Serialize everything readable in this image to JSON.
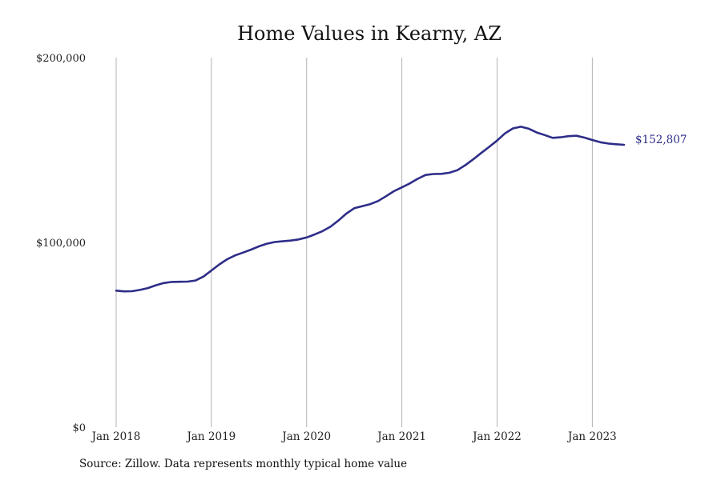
{
  "chart_data": {
    "type": "line",
    "title": "Home Values in Kearny, AZ",
    "xlabel": "",
    "ylabel": "",
    "ylim": [
      0,
      200000
    ],
    "xlim": [
      "2018-01",
      "2023-05"
    ],
    "y_ticks": [
      "$0",
      "$100,000",
      "$200,000"
    ],
    "x_ticks": [
      {
        "date": "2018-01",
        "label": "Jan 2018"
      },
      {
        "date": "2019-01",
        "label": "Jan 2019"
      },
      {
        "date": "2020-01",
        "label": "Jan 2020"
      },
      {
        "date": "2021-01",
        "label": "Jan 2021"
      },
      {
        "date": "2022-01",
        "label": "Jan 2022"
      },
      {
        "date": "2023-01",
        "label": "Jan 2023"
      }
    ],
    "grid": {
      "vertical": true,
      "horizontal": false
    },
    "line_color": "#2e2d88",
    "end_label": "$152,807",
    "series": [
      {
        "values": [
          {
            "x": "2018-01",
            "y": 73900
          },
          {
            "x": "2018-02",
            "y": 73500
          },
          {
            "x": "2018-03",
            "y": 73600
          },
          {
            "x": "2018-04",
            "y": 74300
          },
          {
            "x": "2018-05",
            "y": 75300
          },
          {
            "x": "2018-06",
            "y": 76800
          },
          {
            "x": "2018-07",
            "y": 78000
          },
          {
            "x": "2018-08",
            "y": 78600
          },
          {
            "x": "2018-09",
            "y": 78700
          },
          {
            "x": "2018-10",
            "y": 78800
          },
          {
            "x": "2018-11",
            "y": 79400
          },
          {
            "x": "2018-12",
            "y": 81500
          },
          {
            "x": "2019-01",
            "y": 84800
          },
          {
            "x": "2019-02",
            "y": 88100
          },
          {
            "x": "2019-03",
            "y": 90900
          },
          {
            "x": "2019-04",
            "y": 93000
          },
          {
            "x": "2019-05",
            "y": 94500
          },
          {
            "x": "2019-06",
            "y": 96100
          },
          {
            "x": "2019-07",
            "y": 97900
          },
          {
            "x": "2019-08",
            "y": 99300
          },
          {
            "x": "2019-09",
            "y": 100200
          },
          {
            "x": "2019-10",
            "y": 100600
          },
          {
            "x": "2019-11",
            "y": 101000
          },
          {
            "x": "2019-12",
            "y": 101600
          },
          {
            "x": "2020-01",
            "y": 102700
          },
          {
            "x": "2020-02",
            "y": 104300
          },
          {
            "x": "2020-03",
            "y": 106100
          },
          {
            "x": "2020-04",
            "y": 108500
          },
          {
            "x": "2020-05",
            "y": 111800
          },
          {
            "x": "2020-06",
            "y": 115600
          },
          {
            "x": "2020-07",
            "y": 118500
          },
          {
            "x": "2020-08",
            "y": 119600
          },
          {
            "x": "2020-09",
            "y": 120700
          },
          {
            "x": "2020-10",
            "y": 122400
          },
          {
            "x": "2020-11",
            "y": 125000
          },
          {
            "x": "2020-12",
            "y": 127700
          },
          {
            "x": "2021-01",
            "y": 129800
          },
          {
            "x": "2021-02",
            "y": 131900
          },
          {
            "x": "2021-03",
            "y": 134400
          },
          {
            "x": "2021-04",
            "y": 136500
          },
          {
            "x": "2021-05",
            "y": 137000
          },
          {
            "x": "2021-06",
            "y": 137100
          },
          {
            "x": "2021-07",
            "y": 137700
          },
          {
            "x": "2021-08",
            "y": 139100
          },
          {
            "x": "2021-09",
            "y": 141800
          },
          {
            "x": "2021-10",
            "y": 145000
          },
          {
            "x": "2021-11",
            "y": 148400
          },
          {
            "x": "2021-12",
            "y": 151700
          },
          {
            "x": "2022-01",
            "y": 155100
          },
          {
            "x": "2022-02",
            "y": 159000
          },
          {
            "x": "2022-03",
            "y": 161700
          },
          {
            "x": "2022-04",
            "y": 162600
          },
          {
            "x": "2022-05",
            "y": 161500
          },
          {
            "x": "2022-06",
            "y": 159500
          },
          {
            "x": "2022-07",
            "y": 158100
          },
          {
            "x": "2022-08",
            "y": 156600
          },
          {
            "x": "2022-09",
            "y": 156900
          },
          {
            "x": "2022-10",
            "y": 157500
          },
          {
            "x": "2022-11",
            "y": 157700
          },
          {
            "x": "2022-12",
            "y": 156700
          },
          {
            "x": "2023-01",
            "y": 155400
          },
          {
            "x": "2023-02",
            "y": 154200
          },
          {
            "x": "2023-03",
            "y": 153500
          },
          {
            "x": "2023-04",
            "y": 153100
          },
          {
            "x": "2023-05",
            "y": 152807
          }
        ]
      }
    ]
  },
  "footer": {
    "source": "Source: Zillow. Data represents monthly typical home value"
  }
}
